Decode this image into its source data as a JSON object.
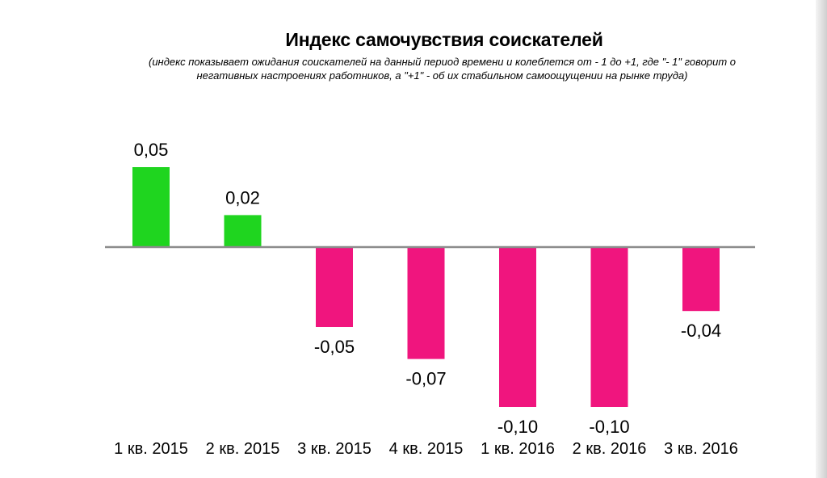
{
  "chart_data": {
    "type": "bar",
    "title": "Индекс самочувствия соискателей",
    "subtitle": "(индекс показывает ожидания соискателей на данный период времени и колеблется от - 1 до +1, где \"- 1\" говорит о негативных настроениях работников, а \"+1\" - об их стабильном самоощущении на рынке труда)",
    "categories": [
      "1 кв. 2015",
      "2 кв. 2015",
      "3 кв. 2015",
      "4 кв. 2015",
      "1 кв. 2016",
      "2 кв. 2016",
      "3 кв. 2016"
    ],
    "values": [
      0.05,
      0.02,
      -0.05,
      -0.07,
      -0.1,
      -0.1,
      -0.04
    ],
    "value_labels": [
      "0,05",
      "0,02",
      "-0,05",
      "-0,07",
      "-0,10",
      "-0,10",
      "-0,04"
    ],
    "positive_color": "#1fd51f",
    "negative_color": "#f0157e",
    "axis_color": "#8c8c8c",
    "xlabel": "",
    "ylabel": "",
    "grid": false,
    "legend": "none"
  }
}
